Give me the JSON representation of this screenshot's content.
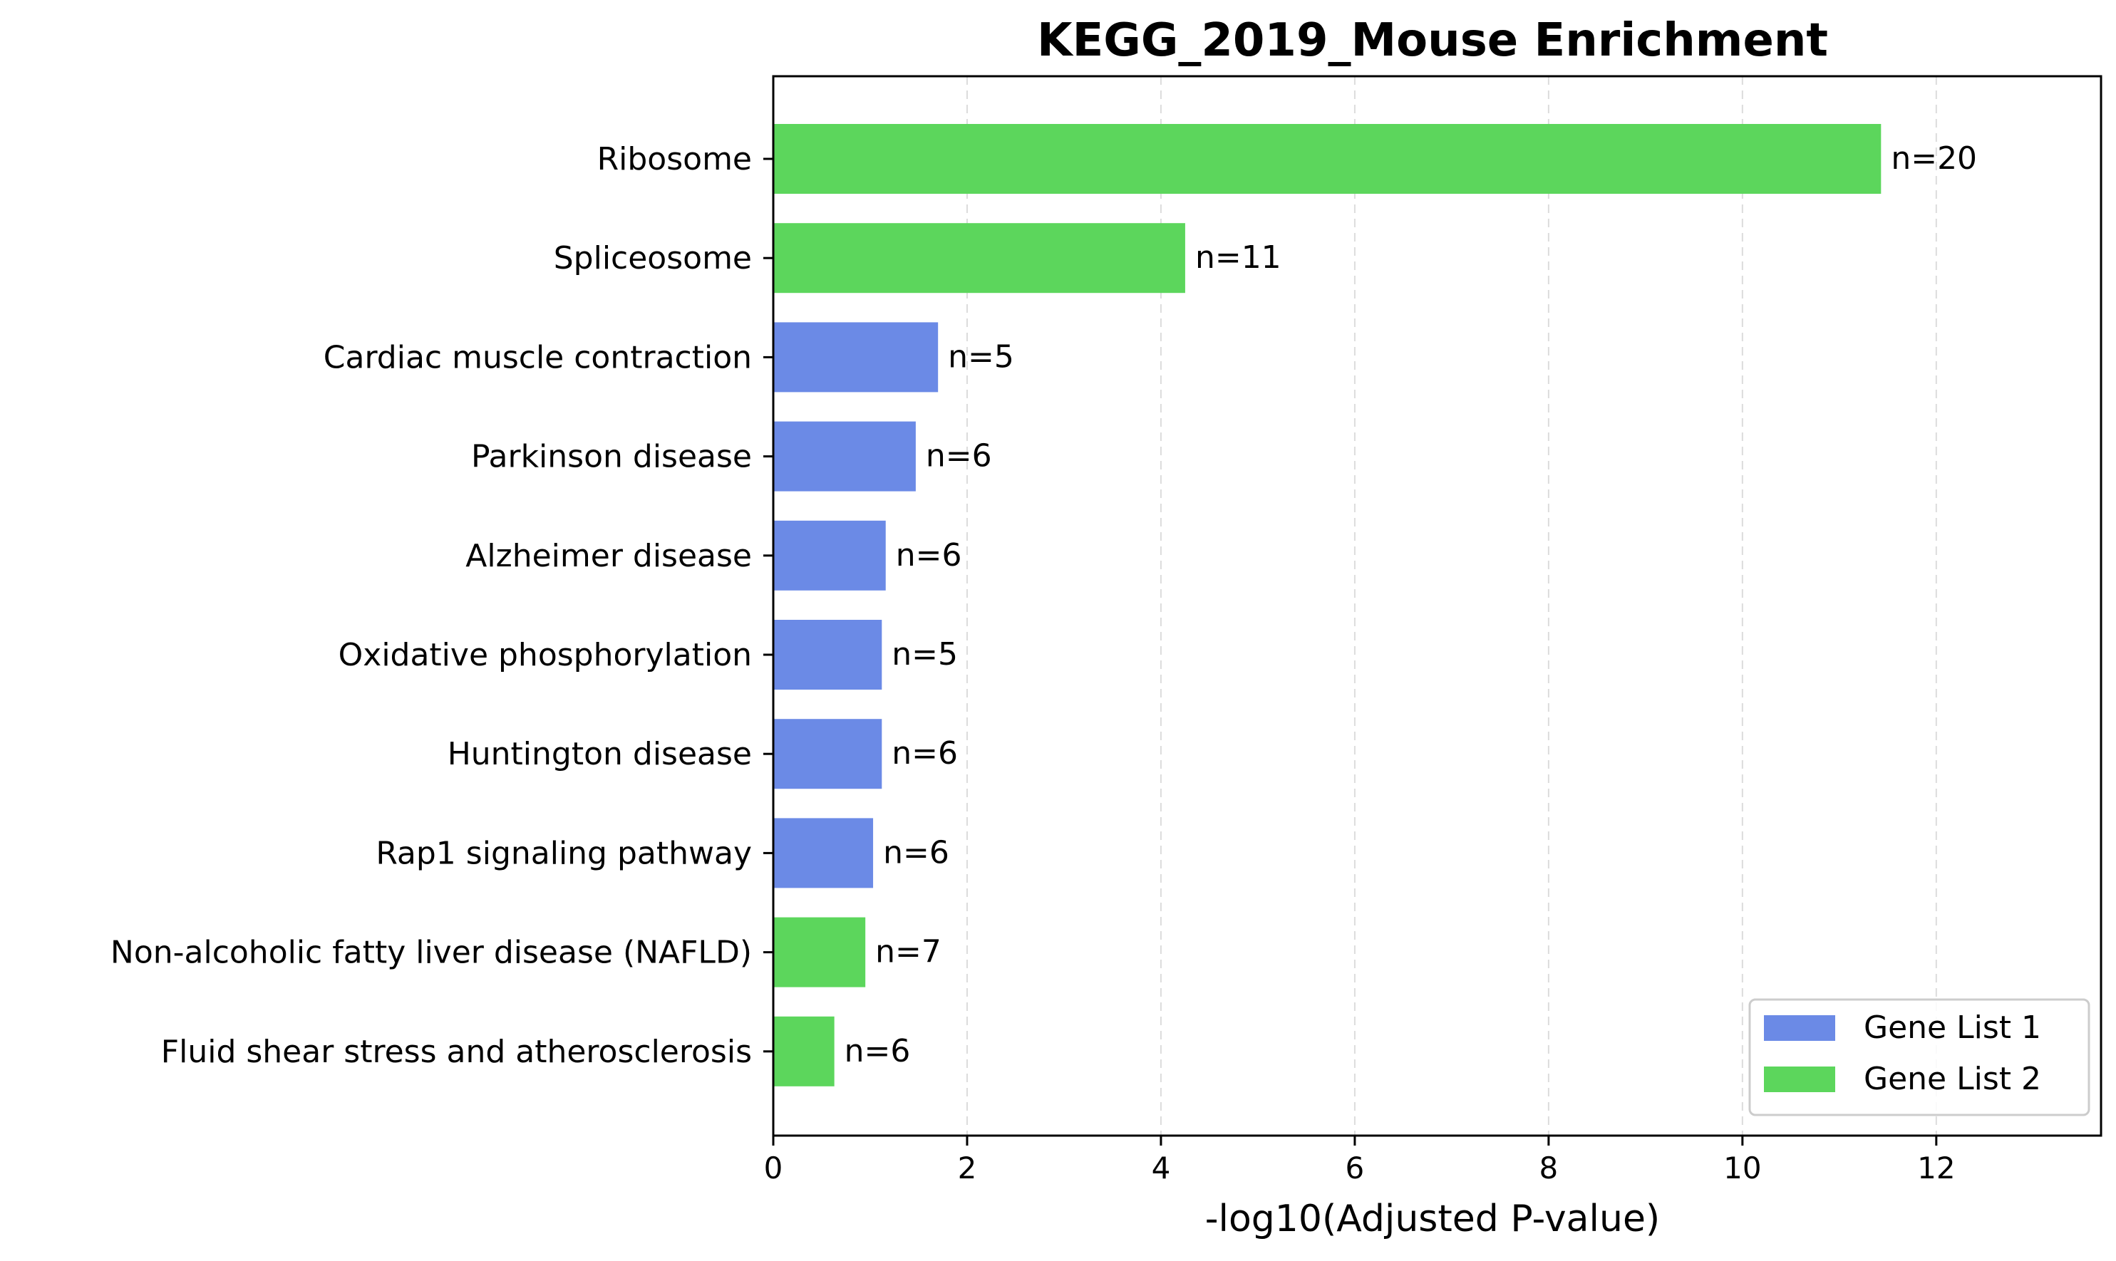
{
  "chart_data": {
    "type": "bar",
    "orientation": "horizontal",
    "title": "KEGG_2019_Mouse Enrichment",
    "xlabel": "-log10(Adjusted P-value)",
    "ylabel": "",
    "xlim": [
      0,
      13.7
    ],
    "xticks": [
      0,
      2,
      4,
      6,
      8,
      10,
      12
    ],
    "grid": "x-dashed",
    "legend_position": "bottom-right",
    "series": [
      {
        "name": "Gene List 1",
        "color": "#6b8ae6"
      },
      {
        "name": "Gene List 2",
        "color": "#5cd65c"
      }
    ],
    "bars": [
      {
        "category": "Ribosome",
        "value": 11.43,
        "series": "Gene List 2",
        "label": "n=20"
      },
      {
        "category": "Spliceosome",
        "value": 4.25,
        "series": "Gene List 2",
        "label": "n=11"
      },
      {
        "category": "Cardiac muscle contraction",
        "value": 1.7,
        "series": "Gene List 1",
        "label": "n=5"
      },
      {
        "category": "Parkinson disease",
        "value": 1.47,
        "series": "Gene List 1",
        "label": "n=6"
      },
      {
        "category": "Alzheimer disease",
        "value": 1.16,
        "series": "Gene List 1",
        "label": "n=6"
      },
      {
        "category": "Oxidative phosphorylation",
        "value": 1.12,
        "series": "Gene List 1",
        "label": "n=5"
      },
      {
        "category": "Huntington disease",
        "value": 1.12,
        "series": "Gene List 1",
        "label": "n=6"
      },
      {
        "category": "Rap1 signaling pathway",
        "value": 1.03,
        "series": "Gene List 1",
        "label": "n=6"
      },
      {
        "category": "Non-alcoholic fatty liver disease (NAFLD)",
        "value": 0.95,
        "series": "Gene List 2",
        "label": "n=7"
      },
      {
        "category": "Fluid shear stress and atherosclerosis",
        "value": 0.63,
        "series": "Gene List 2",
        "label": "n=6"
      }
    ]
  }
}
